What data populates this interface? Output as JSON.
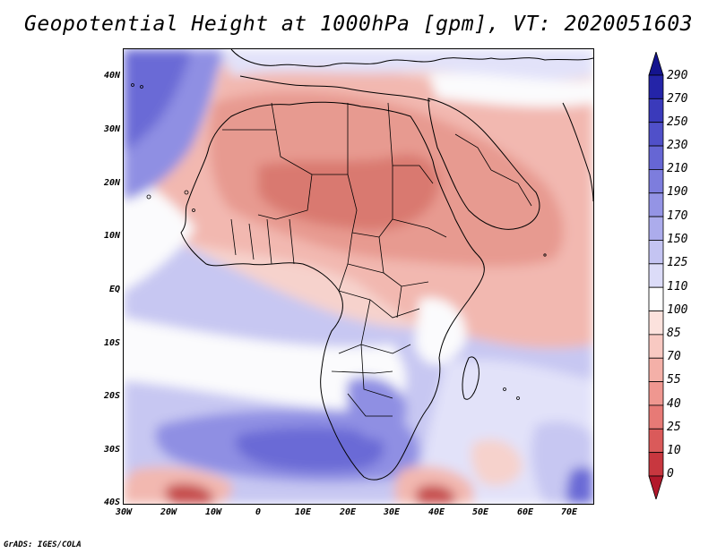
{
  "title": "Geopotential Height at 1000hPa [gpm], VT: 2020051603",
  "credit": "GrADS: IGES/COLA",
  "lat_labels": [
    "40N",
    "30N",
    "20N",
    "10N",
    "EQ",
    "10S",
    "20S",
    "30S",
    "40S"
  ],
  "lon_labels": [
    "30W",
    "20W",
    "10W",
    "0",
    "10E",
    "20E",
    "30E",
    "40E",
    "50E",
    "60E",
    "70E"
  ],
  "colorbar": {
    "levels": [
      "290",
      "270",
      "250",
      "230",
      "210",
      "190",
      "170",
      "150",
      "125",
      "110",
      "100",
      "85",
      "70",
      "55",
      "40",
      "25",
      "10",
      "0"
    ],
    "colors_low_to_high": [
      "#b2182b",
      "#c8373f",
      "#da5a5a",
      "#e77a76",
      "#ef9790",
      "#f4b0a8",
      "#f8c9c2",
      "#fce2dd",
      "#ffffff",
      "#dcdcf8",
      "#c4c4f2",
      "#acacec",
      "#9494e5",
      "#7d7ddd",
      "#6666d4",
      "#5050c9",
      "#3a3abb",
      "#2424a8",
      "#14148f"
    ]
  },
  "palette": {
    "deep_blue": "#6a6ad6",
    "blue": "#8f8fe3",
    "light_blue": "#c7c7f2",
    "pale_blue": "#e2e2f9",
    "white": "#fbfbfd",
    "pale_red": "#f6d2cc",
    "light_red": "#f2b8b0",
    "red": "#e79a90",
    "deep_red": "#d9796f",
    "dark_red": "#c5484a"
  }
}
